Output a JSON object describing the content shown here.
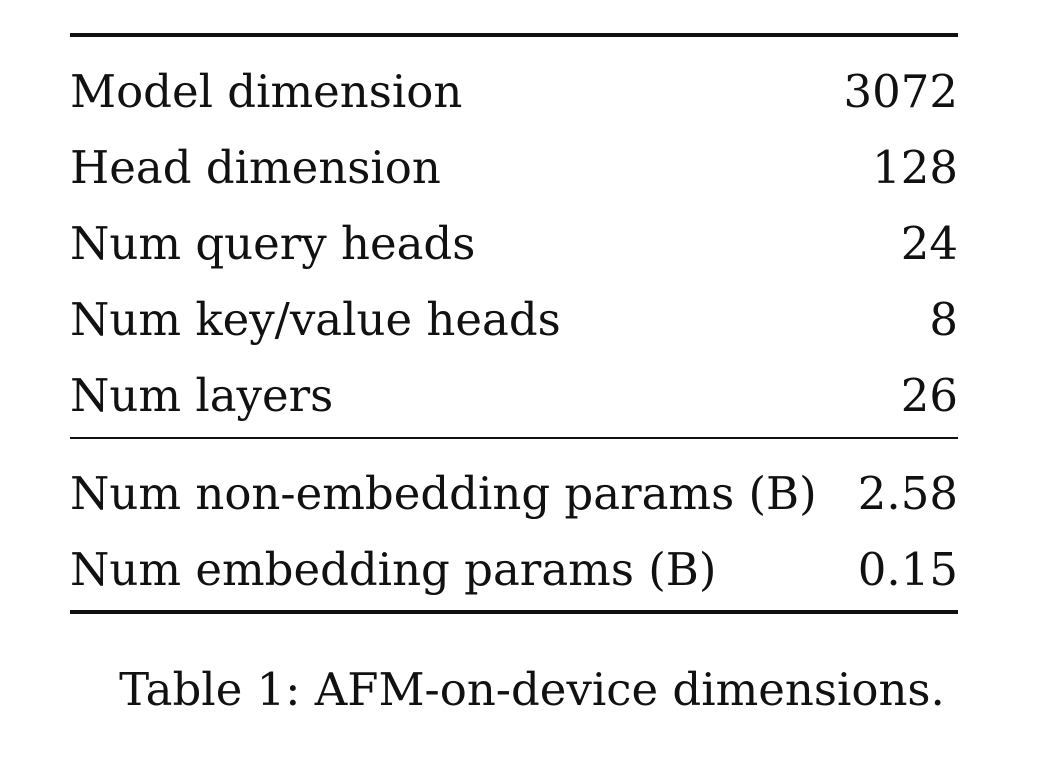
{
  "table": {
    "top_rows": [
      {
        "label": "Model dimension",
        "value": "3072"
      },
      {
        "label": "Head dimension",
        "value": "128"
      },
      {
        "label": "Num query heads",
        "value": "24"
      },
      {
        "label": "Num key/value heads",
        "value": "8"
      },
      {
        "label": "Num layers",
        "value": "26"
      }
    ],
    "bottom_rows": [
      {
        "label": "Num non-embedding params (B)",
        "value": "2.58"
      },
      {
        "label": "Num embedding params (B)",
        "value": "0.15"
      }
    ]
  },
  "caption": "Table 1: AFM-on-device dimensions."
}
